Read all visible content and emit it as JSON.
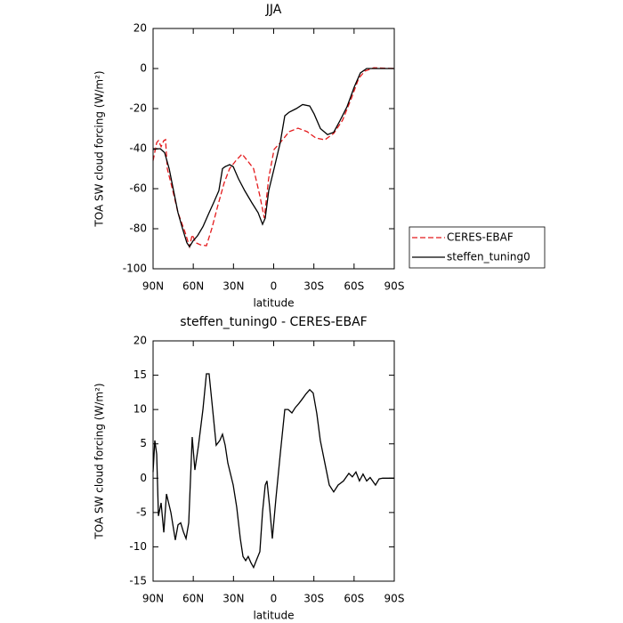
{
  "chart_data": [
    {
      "type": "line",
      "title": "JJA",
      "xlabel": "latitude",
      "ylabel": "TOA SW cloud forcing (W/m²)",
      "xlim": [
        90,
        -90
      ],
      "xticks": [
        {
          "value": 90,
          "label": "90N"
        },
        {
          "value": 60,
          "label": "60N"
        },
        {
          "value": 30,
          "label": "30N"
        },
        0,
        {
          "value": -30,
          "label": "30S"
        },
        {
          "value": -60,
          "label": "60S"
        },
        {
          "value": -90,
          "label": "90S"
        }
      ],
      "ylim": [
        -100,
        20
      ],
      "yticks": [
        -100,
        -80,
        -60,
        -40,
        -20,
        0,
        20
      ],
      "legend": "outside-right",
      "series": [
        {
          "name": "CERES-EBAF",
          "color": "#e41a1c",
          "dash": "dashed",
          "x": [
            90,
            87.3,
            86,
            84,
            82,
            80.7,
            79.4,
            76,
            71.4,
            66,
            62.8,
            60.8,
            58.1,
            54.8,
            50.2,
            46.2,
            41.5,
            36.9,
            32.9,
            28.2,
            23.6,
            19.6,
            15,
            10.3,
            7,
            3.7,
            -0.3,
            -4.9,
            -11.6,
            -18.2,
            -24.9,
            -31.5,
            -38.2,
            -44.8,
            -51.4,
            -58.1,
            -63.4,
            -68,
            -74.7,
            -90
          ],
          "values": [
            -46,
            -37,
            -36,
            -39,
            -36,
            -35.5,
            -50,
            -59,
            -72,
            -82,
            -89,
            -83,
            -87,
            -88,
            -88.5,
            -80,
            -68,
            -57,
            -50,
            -46,
            -42.7,
            -46,
            -50,
            -63.6,
            -74.7,
            -54.7,
            -40.4,
            -37,
            -31.5,
            -29.8,
            -31.5,
            -34.7,
            -35.6,
            -32.4,
            -25.8,
            -14.7,
            -5,
            -1.3,
            0.4,
            0
          ]
        },
        {
          "name": "steffen_tuning0",
          "color": "#000000",
          "dash": "solid",
          "x": [
            90,
            84.7,
            81.4,
            78,
            74.7,
            71.4,
            68,
            64.8,
            62.8,
            60.1,
            56.8,
            52.8,
            48.2,
            44.8,
            40.9,
            38.2,
            36.2,
            32.9,
            30.2,
            26.3,
            21.6,
            16.3,
            11.6,
            8.3,
            6.3,
            3.7,
            -0.3,
            -4.9,
            -8.3,
            -11.6,
            -16.9,
            -21.6,
            -26.9,
            -30.2,
            -34.9,
            -40.2,
            -44.8,
            -49.5,
            -54.8,
            -60.1,
            -64.7,
            -69.4,
            -90
          ],
          "values": [
            -40.4,
            -40,
            -42,
            -50,
            -61,
            -72,
            -80,
            -87,
            -89,
            -86,
            -83.5,
            -79,
            -72,
            -67,
            -61,
            -50,
            -49,
            -48,
            -49,
            -55,
            -61,
            -67,
            -72,
            -77.8,
            -74.7,
            -61,
            -50,
            -37,
            -23.6,
            -21.8,
            -20,
            -18,
            -18.7,
            -22.7,
            -30,
            -33,
            -31.8,
            -26,
            -19,
            -9.3,
            -2.2,
            0,
            0
          ]
        }
      ]
    },
    {
      "type": "line",
      "title": "steffen_tuning0 - CERES-EBAF",
      "xlabel": "latitude",
      "ylabel": "TOA SW cloud forcing (W/m²)",
      "xlim": [
        90,
        -90
      ],
      "xticks": [
        {
          "value": 90,
          "label": "90N"
        },
        {
          "value": 60,
          "label": "60N"
        },
        {
          "value": 30,
          "label": "30N"
        },
        0,
        {
          "value": -30,
          "label": "30S"
        },
        {
          "value": -60,
          "label": "60S"
        },
        {
          "value": -90,
          "label": "90S"
        }
      ],
      "ylim": [
        -15,
        20
      ],
      "yticks": [
        -15,
        -10,
        -5,
        0,
        5,
        10,
        15,
        20
      ],
      "series": [
        {
          "color": "#000000",
          "dash": "solid",
          "x": [
            90,
            88.7,
            87.3,
            86,
            84,
            82,
            80,
            76.7,
            73.4,
            71.4,
            69.4,
            67.4,
            65.4,
            63.4,
            60.8,
            58.8,
            56.1,
            52.8,
            50.2,
            48.2,
            46.2,
            42.9,
            40.2,
            38.2,
            36.2,
            34.2,
            30.2,
            27.6,
            24.9,
            22.9,
            20.9,
            19,
            17,
            15,
            13,
            10.3,
            8.3,
            6.3,
            5,
            3,
            1,
            -1.7,
            -4.9,
            -8.3,
            -10.9,
            -13.6,
            -16.2,
            -18.9,
            -21.6,
            -24.2,
            -26.9,
            -29.5,
            -32.2,
            -34.8,
            -38.2,
            -41.5,
            -44.8,
            -48.1,
            -52.1,
            -56.1,
            -58.7,
            -61.4,
            -64,
            -66.7,
            -69.4,
            -72,
            -76,
            -78.7,
            -81.3,
            -90
          ],
          "values": [
            0.9,
            5.5,
            3.5,
            -5.5,
            -3.6,
            -7.9,
            -2.3,
            -5,
            -9,
            -6.8,
            -6.5,
            -7.8,
            -8.8,
            -6.5,
            6,
            1.2,
            4.8,
            10,
            15.2,
            15.2,
            11.3,
            4.8,
            5.5,
            6.4,
            4.8,
            2.2,
            -1,
            -4.2,
            -8.8,
            -11.4,
            -12,
            -11.4,
            -12.3,
            -13,
            -12,
            -10.7,
            -4.9,
            -1,
            -0.4,
            -4.2,
            -8.8,
            -2.9,
            3.5,
            10,
            10,
            9.5,
            10.3,
            10.9,
            11.6,
            12.3,
            12.9,
            12.4,
            9.4,
            5.5,
            2.2,
            -1,
            -2,
            -1,
            -0.4,
            0.7,
            0.2,
            0.9,
            -0.4,
            0.6,
            -0.4,
            0.1,
            -1,
            -0.1,
            0,
            0
          ]
        }
      ]
    }
  ]
}
